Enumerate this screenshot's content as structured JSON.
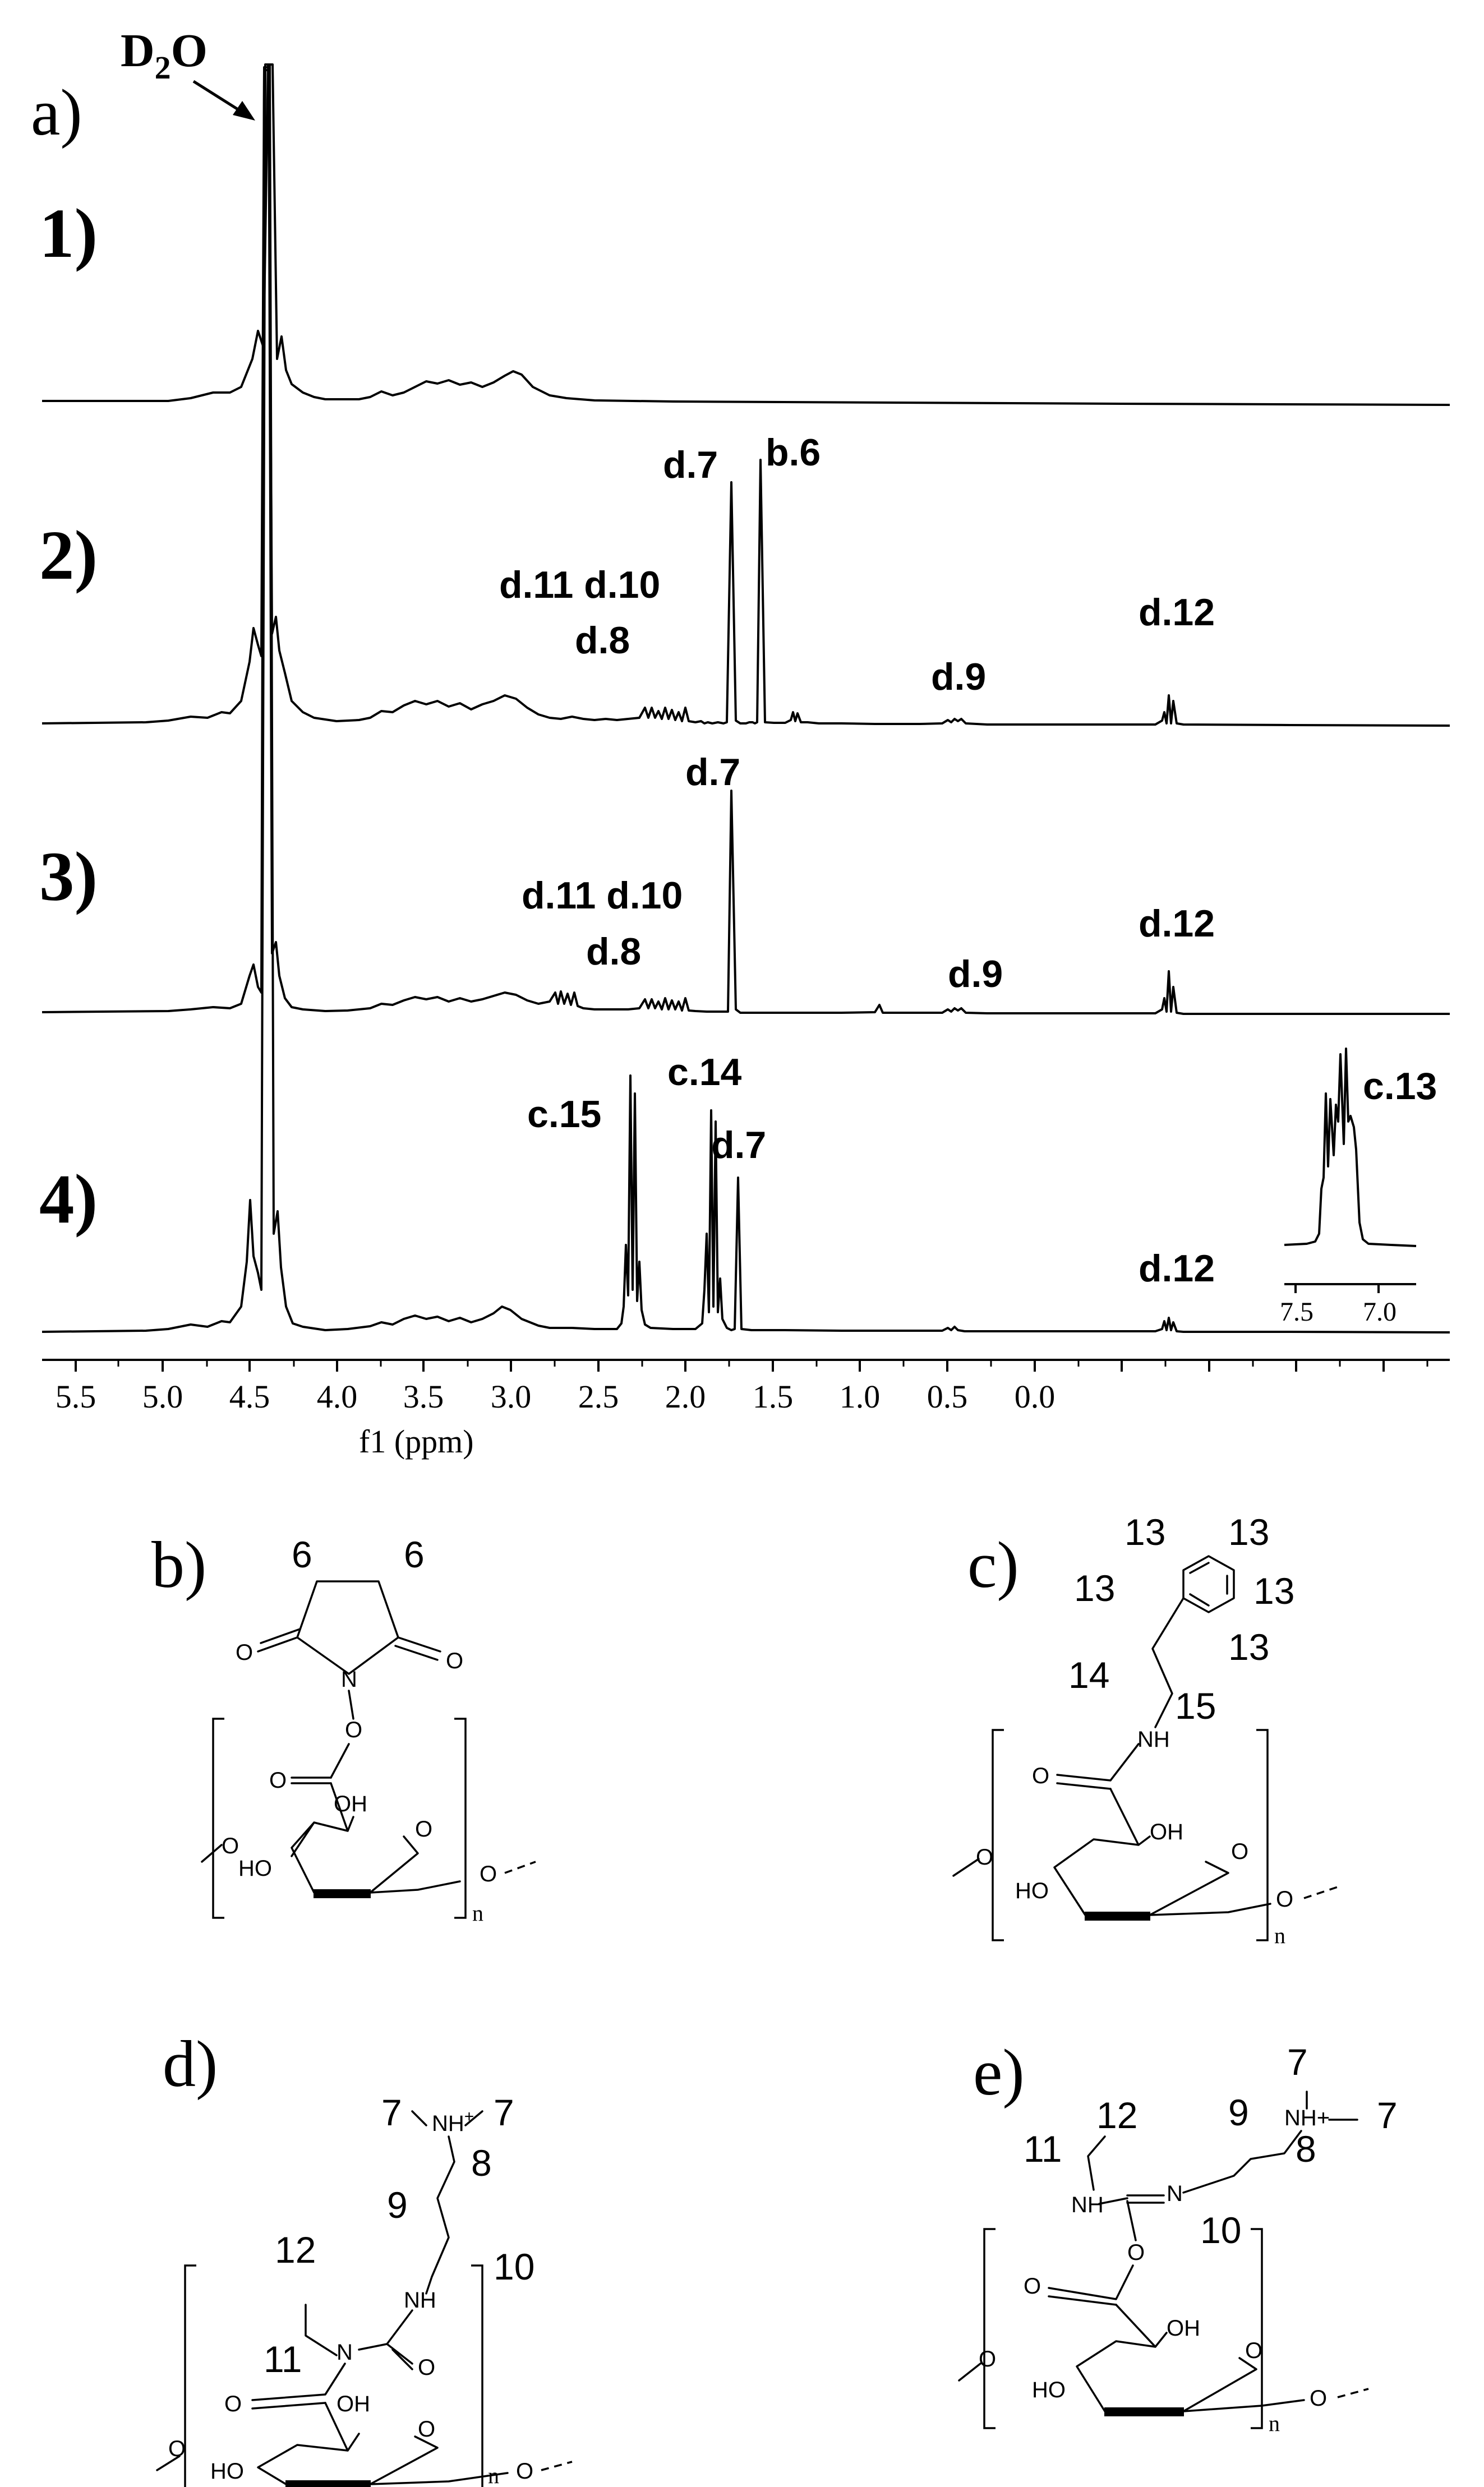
{
  "panel_a": {
    "letter": "a)",
    "solvent_label": "D",
    "solvent_sub": "2",
    "solvent_tail": "O",
    "trace_labels": [
      "1)",
      "2)",
      "3)",
      "4)"
    ],
    "peak_labels": {
      "t2_d7": "d.7",
      "t2_b6": "b.6",
      "t2_d11_d10": "d.11 d.10",
      "t2_d8": "d.8",
      "t2_d9": "d.9",
      "t2_d12": "d.12",
      "t3_d7": "d.7",
      "t3_d11_d10": "d.11 d.10",
      "t3_d8": "d.8",
      "t3_d9": "d.9",
      "t3_d12": "d.12",
      "t4_c15": "c.15",
      "t4_c14": "c.14",
      "t4_d7": "d.7",
      "t4_c13": "c.13",
      "t4_d12": "d.12"
    },
    "inset_ticks": [
      "7.5",
      "7.0"
    ],
    "axis_ticks": [
      "5.5",
      "5.0",
      "4.5",
      "4.0",
      "3.5",
      "3.0",
      "2.5",
      "2.0",
      "1.5",
      "1.0",
      "0.5",
      "0.0"
    ],
    "xlabel": "f1 (ppm)"
  },
  "panel_b": {
    "letter": "b)",
    "numbers": [
      "6",
      "6"
    ],
    "atoms": {
      "o_left": "O",
      "o_right": "O",
      "n": "N",
      "o_link": "O",
      "o_carbonyl": "O",
      "oh": "OH",
      "ho": "HO",
      "o_ring": "O",
      "o_left_glyc": "O",
      "o_right_glyc": "O",
      "n_sub": "n"
    }
  },
  "panel_c": {
    "letter": "c)",
    "numbers": [
      "13",
      "13",
      "13",
      "13",
      "13",
      "14",
      "15"
    ],
    "atoms": {
      "nh": "NH",
      "o_carbonyl": "O",
      "oh": "OH",
      "ho": "HO",
      "o_ring": "O",
      "o_left_glyc": "O",
      "o_right_glyc": "O",
      "n_sub": "n"
    }
  },
  "panel_d": {
    "letter": "d)",
    "numbers": [
      "7",
      "7",
      "8",
      "9",
      "10",
      "11",
      "12"
    ],
    "atoms": {
      "nh_plus": "NH",
      "plus": "+",
      "nh": "NH",
      "n": "N",
      "o_urea": "O",
      "o_carbonyl": "O",
      "oh": "OH",
      "ho": "HO",
      "o_ring": "O",
      "o_left_glyc": "O",
      "o_right_glyc": "O",
      "n_sub": "n"
    }
  },
  "panel_e": {
    "letter": "e)",
    "numbers": [
      "7",
      "7",
      "8",
      "9",
      "10",
      "11",
      "12"
    ],
    "atoms": {
      "nh_plus": "NH+",
      "nh": "NH",
      "n": "N",
      "o_link": "O",
      "o_carbonyl": "O",
      "oh": "OH",
      "ho": "HO",
      "o_ring": "O",
      "o_left_glyc": "O",
      "o_right_glyc": "O",
      "n_sub": "n"
    }
  }
}
